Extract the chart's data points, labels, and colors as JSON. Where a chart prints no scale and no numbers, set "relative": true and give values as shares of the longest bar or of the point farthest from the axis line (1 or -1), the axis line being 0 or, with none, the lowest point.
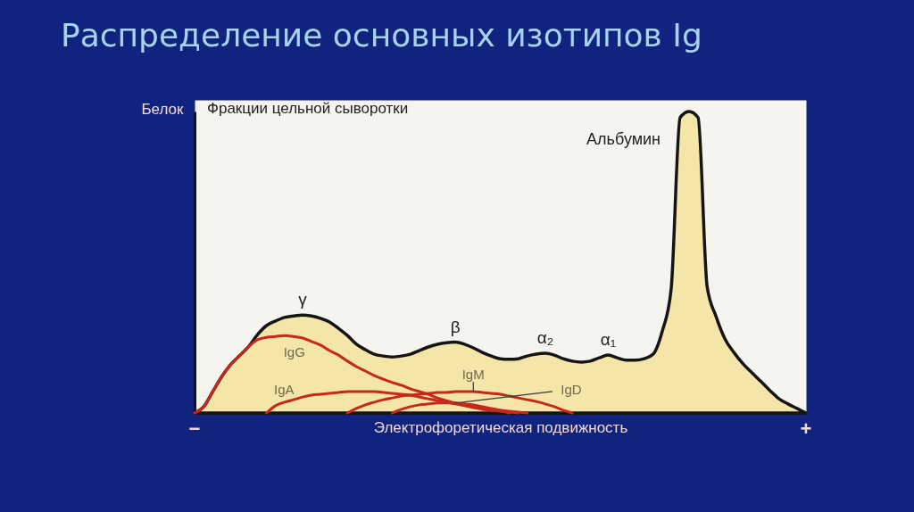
{
  "chart_data": {
    "type": "line",
    "title": "Распределение основных изотипов Ig",
    "subtitle": "Фракции цельной сыворотки",
    "xlabel": "Электрофоретическая подвижность",
    "ylabel": "Белок",
    "relative": true,
    "annotations": [
      "γ",
      "β",
      "α₂",
      "α₁",
      "Альбумин",
      "−",
      "+"
    ],
    "categories": [
      null,
      null,
      null,
      null,
      null,
      null,
      null,
      null,
      null,
      null,
      null,
      null,
      null,
      null,
      null,
      null,
      null,
      null,
      null,
      null,
      null,
      null,
      null,
      null,
      null,
      null,
      null,
      null,
      null,
      null,
      null,
      null,
      null,
      null,
      null,
      null,
      null,
      null,
      null,
      null,
      null,
      null,
      null,
      null,
      null,
      null,
      null,
      null,
      null,
      null,
      null,
      null,
      null,
      null,
      null,
      null,
      null,
      null,
      null,
      null,
      null,
      null,
      null,
      null,
      null,
      null,
      null,
      null,
      null
    ],
    "series": [
      {
        "type": "area",
        "color": "#f4e5a8",
        "values": [
          0,
          0.02,
          0.07,
          0.12,
          0.16,
          0.19,
          0.22,
          0.26,
          0.29,
          0.305,
          0.317,
          0.322,
          0.325,
          0.322,
          0.314,
          0.302,
          0.281,
          0.257,
          0.228,
          0.21,
          0.195,
          0.189,
          0.186,
          0.189,
          0.195,
          0.207,
          0.219,
          0.228,
          0.233,
          0.235,
          0.228,
          0.216,
          0.201,
          0.189,
          0.18,
          0.178,
          0.18,
          0.189,
          0.195,
          0.198,
          0.192,
          0.18,
          0.172,
          0.169,
          0.172,
          0.183,
          0.192,
          0.183,
          0.175,
          0.175,
          0.18,
          0.195,
          0.27,
          0.41,
          0.98,
          1,
          0.98,
          0.42,
          0.32,
          0.245,
          0.2,
          0.163,
          0.133,
          0.104,
          0.074,
          0.047,
          0.03,
          0.015,
          0
        ]
      },
      {
        "name": "IgG",
        "color": "#c8281c",
        "values": [
          0,
          0.02,
          0.07,
          0.12,
          0.16,
          0.19,
          0.22,
          0.243,
          0.251,
          0.254,
          0.257,
          0.254,
          0.249,
          0.237,
          0.225,
          0.207,
          0.192,
          0.172,
          0.154,
          0.139,
          0.124,
          0.112,
          0.101,
          0.092,
          0.08,
          0.071,
          0.062,
          0.05,
          0.041,
          0.033,
          0.027,
          0.021,
          0.015,
          0.012,
          0.009,
          0.006,
          0.003,
          0,
          null,
          null,
          null,
          null,
          null,
          null,
          null,
          null,
          null,
          null,
          null,
          null,
          null,
          null,
          null,
          null,
          null,
          null,
          null,
          null,
          null,
          null,
          null,
          null,
          null,
          null,
          null,
          null,
          null,
          null,
          null
        ]
      },
      {
        "name": "IgA",
        "color": "#c8281c",
        "values": [
          null,
          null,
          null,
          null,
          null,
          null,
          null,
          null,
          0,
          0.024,
          0.036,
          0.044,
          0.053,
          0.059,
          0.062,
          0.065,
          0.068,
          0.071,
          0.071,
          0.071,
          0.071,
          0.068,
          0.065,
          0.062,
          0.059,
          0.053,
          0.047,
          0.041,
          0.036,
          0.03,
          0.024,
          0.018,
          0.012,
          0.009,
          0.006,
          0.003,
          0,
          null,
          null,
          null,
          null,
          null,
          null,
          null,
          null,
          null,
          null,
          null,
          null,
          null,
          null,
          null,
          null,
          null,
          null,
          null,
          null,
          null,
          null,
          null,
          null,
          null,
          null,
          null,
          null,
          null,
          null,
          null,
          null
        ]
      },
      {
        "name": "IgM",
        "color": "#c8281c",
        "values": [
          null,
          null,
          null,
          null,
          null,
          null,
          null,
          null,
          null,
          null,
          null,
          null,
          null,
          null,
          null,
          null,
          null,
          0,
          0.015,
          0.027,
          0.036,
          0.044,
          0.05,
          0.056,
          0.059,
          0.062,
          0.065,
          0.068,
          0.068,
          0.071,
          0.071,
          0.071,
          0.068,
          0.065,
          0.062,
          0.056,
          0.05,
          0.044,
          0.038,
          0.03,
          0.021,
          0.009,
          0,
          null,
          null,
          null,
          null,
          null,
          null,
          null,
          null,
          null,
          null,
          null,
          null,
          null,
          null,
          null,
          null,
          null,
          null,
          null,
          null,
          null,
          null,
          null,
          null,
          null,
          null
        ]
      },
      {
        "name": "IgD",
        "color": "#c8281c",
        "values": [
          null,
          null,
          null,
          null,
          null,
          null,
          null,
          null,
          null,
          null,
          null,
          null,
          null,
          null,
          null,
          null,
          null,
          null,
          null,
          null,
          null,
          null,
          0,
          0.012,
          0.021,
          0.027,
          0.03,
          0.033,
          0.033,
          0.033,
          0.03,
          0.027,
          0.021,
          0.015,
          0.009,
          0,
          null,
          null,
          null,
          null,
          null,
          null,
          null,
          null,
          null,
          null,
          null,
          null,
          null,
          null,
          null,
          null,
          null,
          null,
          null,
          null,
          null,
          null,
          null,
          null,
          null,
          null,
          null,
          null,
          null,
          null,
          null,
          null,
          null
        ]
      }
    ]
  }
}
